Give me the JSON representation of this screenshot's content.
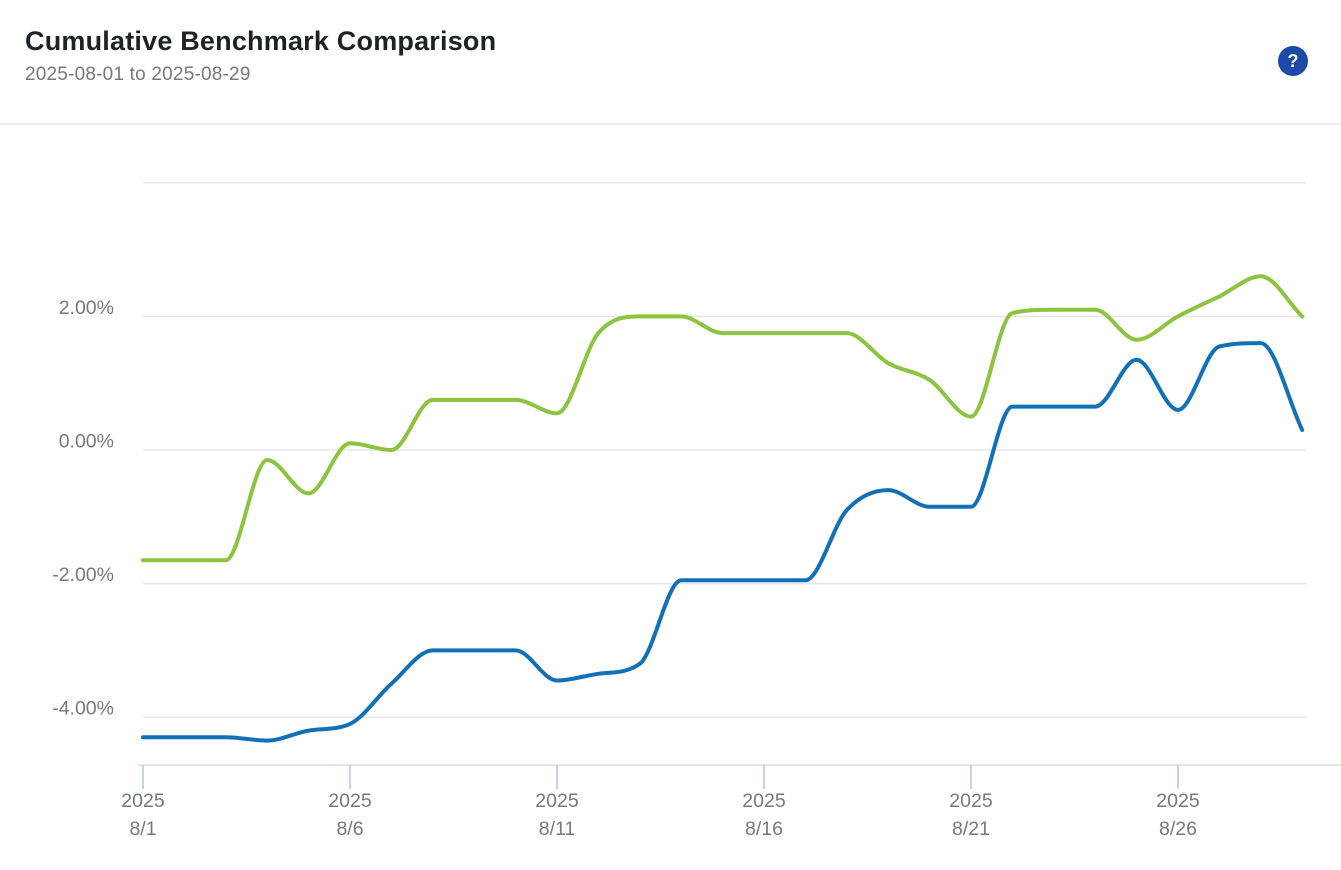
{
  "header": {
    "title": "Cumulative Benchmark Comparison",
    "date_range": "2025-08-01 to 2025-08-29",
    "help_icon": "?"
  },
  "colors": {
    "title_text": "#1e2226",
    "subtitle_text": "#75787c",
    "help_button_bg": "#1b4aa8",
    "gridline": "#e6e6e6",
    "axis_line": "#d9dee5",
    "tick_mark": "#c5d3e8",
    "axis_label_text": "#76797c"
  },
  "chart_data": {
    "type": "line",
    "title": "Cumulative Benchmark Comparison",
    "subtitle": "2025-08-01 to 2025-08-29",
    "xlabel": "",
    "ylabel": "",
    "y_unit": "%",
    "ylim": [
      -5.2,
      4.8
    ],
    "grid": true,
    "legend_position": "none",
    "x": [
      "8/1",
      "8/2",
      "8/3",
      "8/4",
      "8/5",
      "8/6",
      "8/7",
      "8/8",
      "8/9",
      "8/10",
      "8/11",
      "8/12",
      "8/13",
      "8/14",
      "8/15",
      "8/16",
      "8/17",
      "8/18",
      "8/19",
      "8/20",
      "8/21",
      "8/22",
      "8/23",
      "8/24",
      "8/25",
      "8/26",
      "8/27",
      "8/28",
      "8/29"
    ],
    "y_gridlines": [
      {
        "value": 4,
        "label": ""
      },
      {
        "value": 2,
        "label": "2.00%"
      },
      {
        "value": 0,
        "label": "0.00%"
      },
      {
        "value": -2,
        "label": "-2.00%"
      },
      {
        "value": -4,
        "label": "-4.00%"
      }
    ],
    "x_ticks": [
      {
        "index": 0,
        "line1": "2025",
        "line2": "8/1"
      },
      {
        "index": 5,
        "line1": "2025",
        "line2": "8/6"
      },
      {
        "index": 10,
        "line1": "2025",
        "line2": "8/11"
      },
      {
        "index": 15,
        "line1": "2025",
        "line2": "8/16"
      },
      {
        "index": 20,
        "line1": "2025",
        "line2": "8/21"
      },
      {
        "index": 25,
        "line1": "2025",
        "line2": "8/26"
      }
    ],
    "series": [
      {
        "name": "green-series",
        "color": "#8cc440",
        "values": [
          -1.65,
          -1.65,
          -1.65,
          -0.15,
          -0.65,
          0.1,
          0.0,
          0.75,
          0.75,
          0.75,
          0.55,
          1.75,
          2.0,
          2.0,
          1.75,
          1.75,
          1.75,
          1.75,
          1.3,
          1.05,
          0.5,
          2.05,
          2.1,
          2.1,
          1.65,
          2.0,
          2.3,
          2.6,
          2.0
        ]
      },
      {
        "name": "blue-series",
        "color": "#1271b6",
        "values": [
          -4.3,
          -4.3,
          -4.3,
          -4.35,
          -4.2,
          -4.1,
          -3.5,
          -3.0,
          -3.0,
          -3.0,
          -3.45,
          -3.35,
          -3.2,
          -1.95,
          -1.95,
          -1.95,
          -1.95,
          -0.9,
          -0.6,
          -0.85,
          -0.85,
          0.65,
          0.65,
          0.65,
          1.35,
          0.6,
          1.55,
          1.6,
          0.3
        ]
      }
    ]
  }
}
